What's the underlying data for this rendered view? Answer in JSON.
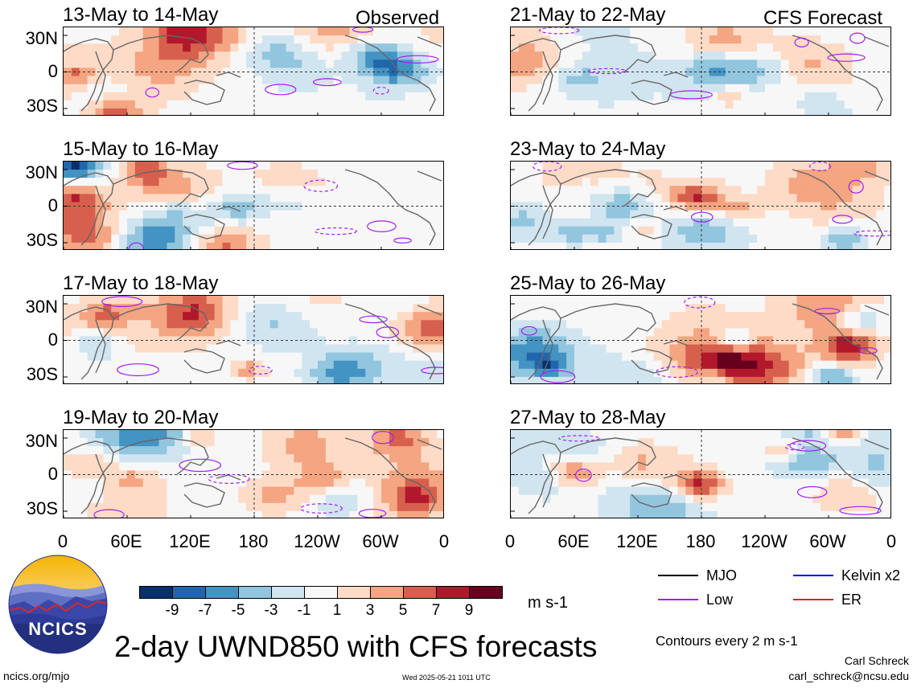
{
  "labels": {
    "observed": "Observed",
    "forecast": "CFS Forecast",
    "main_title": "2-day UWND850 with CFS forecasts",
    "units": "m s-1",
    "contours": "Contours every 2 m s-1",
    "author": "Carl Schreck",
    "email": "carl_schreck@ncsu.edu",
    "site": "ncics.org/mjo",
    "timestamp": "Wed 2025-05-21 1011 UTC",
    "logo_text": "NCICS"
  },
  "panels": {
    "left": [
      "13-May to 14-May",
      "15-May to 16-May",
      "17-May to 18-May",
      "19-May to 20-May"
    ],
    "right": [
      "21-May to 22-May",
      "23-May to 24-May",
      "25-May to 26-May",
      "27-May to 28-May"
    ]
  },
  "axes": {
    "y_ticks": [
      "30N",
      "0",
      "30S"
    ],
    "x_ticks": [
      "0",
      "60E",
      "120E",
      "180",
      "120W",
      "60W",
      "0"
    ]
  },
  "colorbar": {
    "colors": [
      "#08306b",
      "#2166ac",
      "#4393c3",
      "#92c5de",
      "#d1e5f0",
      "#f7f7f7",
      "#fddbc7",
      "#f4a582",
      "#d6604d",
      "#b2182b",
      "#67001f"
    ],
    "labels": [
      "-9",
      "-7",
      "-5",
      "-3",
      "-1",
      "1",
      "3",
      "5",
      "7",
      "9"
    ]
  },
  "legend": {
    "items": [
      {
        "name": "MJO",
        "color": "#000000"
      },
      {
        "name": "Kelvin x2",
        "color": "#0000ff"
      },
      {
        "name": "Low",
        "color": "#a020f0"
      },
      {
        "name": "ER",
        "color": "#dd2222"
      }
    ]
  }
}
